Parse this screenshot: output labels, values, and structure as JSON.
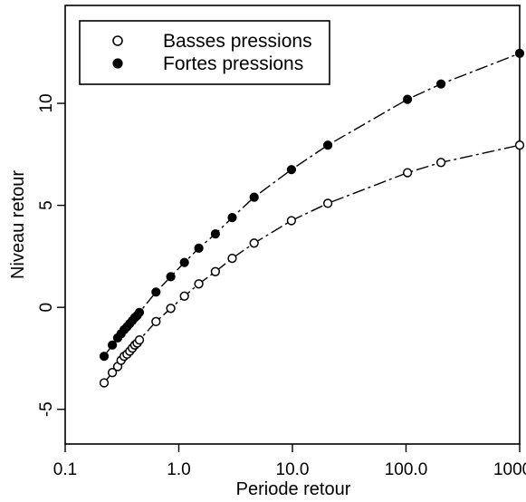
{
  "chart_data": {
    "type": "scatter",
    "title": "",
    "xlabel": "Periode retour",
    "ylabel": "Niveau retour",
    "xscale": "log",
    "xlim": [
      0.1,
      1000
    ],
    "ylim": [
      -6.7,
      14.8
    ],
    "xticks": [
      0.1,
      1,
      10,
      100,
      1000
    ],
    "xtick_labels": [
      "0.1",
      "1.0",
      "10.0",
      "100.0",
      "1000.0"
    ],
    "yticks": [
      -5,
      0,
      5,
      10
    ],
    "ytick_labels": [
      "-5",
      "0",
      "5",
      "10"
    ],
    "grid": false,
    "legend": {
      "position": "top-left"
    },
    "series": [
      {
        "name": "Basses pressions",
        "marker": "open-circle",
        "color": "#000000",
        "x": [
          0.22,
          0.26,
          0.29,
          0.31,
          0.33,
          0.35,
          0.37,
          0.39,
          0.41,
          0.43,
          0.45,
          0.63,
          0.85,
          1.12,
          1.5,
          2.1,
          2.95,
          4.6,
          9.8,
          20.5,
          103,
          203,
          1000
        ],
        "y": [
          -3.7,
          -3.2,
          -2.9,
          -2.6,
          -2.4,
          -2.3,
          -2.15,
          -2.0,
          -1.85,
          -1.75,
          -1.6,
          -0.7,
          -0.05,
          0.55,
          1.15,
          1.75,
          2.4,
          3.15,
          4.25,
          5.1,
          6.6,
          7.1,
          7.95
        ]
      },
      {
        "name": "Fortes pressions",
        "marker": "filled-circle",
        "color": "#000000",
        "x": [
          0.22,
          0.26,
          0.29,
          0.31,
          0.33,
          0.35,
          0.37,
          0.39,
          0.41,
          0.43,
          0.45,
          0.63,
          0.85,
          1.12,
          1.5,
          2.1,
          2.95,
          4.6,
          9.8,
          20.5,
          103,
          203,
          1000
        ],
        "y": [
          -2.4,
          -1.85,
          -1.5,
          -1.3,
          -1.1,
          -0.95,
          -0.8,
          -0.65,
          -0.5,
          -0.4,
          -0.25,
          0.75,
          1.5,
          2.2,
          2.9,
          3.6,
          4.4,
          5.4,
          6.75,
          7.95,
          10.2,
          10.95,
          12.45
        ]
      }
    ]
  }
}
